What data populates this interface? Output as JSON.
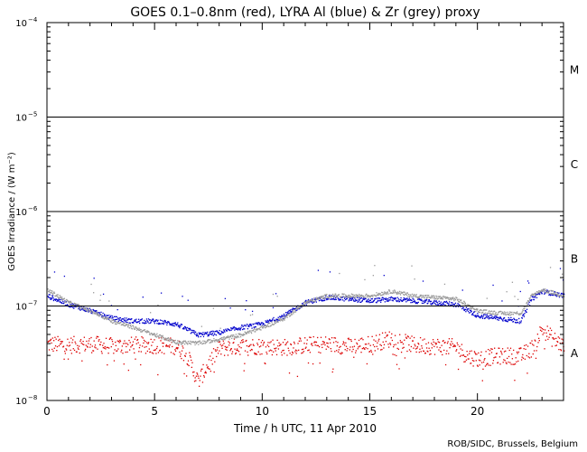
{
  "chart_data": {
    "type": "scatter",
    "title": "GOES 0.1–0.8nm (red), LYRA Al (blue) & Zr (grey) proxy",
    "xlabel": "Time / h UTC, 11 Apr 2010",
    "ylabel": "GOES Irradiance / (W m⁻²)",
    "xlim": [
      0,
      24
    ],
    "ylim_log10": [
      -8,
      -4
    ],
    "x_ticks": [
      0,
      5,
      10,
      15,
      20
    ],
    "y_ticks": [
      {
        "exp": -8,
        "base": "10",
        "sup": "−8"
      },
      {
        "exp": -7,
        "base": "10",
        "sup": "−7"
      },
      {
        "exp": -6,
        "base": "10",
        "sup": "−6"
      },
      {
        "exp": -5,
        "base": "10",
        "sup": "−5"
      },
      {
        "exp": -4,
        "base": "10",
        "sup": "−4"
      }
    ],
    "class_thresholds": [
      -7,
      -6,
      -5
    ],
    "class_labels": [
      {
        "label": "A",
        "log10": -7.5
      },
      {
        "label": "B",
        "log10": -6.5
      },
      {
        "label": "C",
        "log10": -5.5
      },
      {
        "label": "M",
        "log10": -4.5
      }
    ],
    "series": [
      {
        "name": "GOES 0.1-0.8nm",
        "color": "#dd0000",
        "x": [
          0,
          1,
          2,
          3,
          4,
          5,
          6,
          6.5,
          7,
          7.5,
          8,
          9,
          10,
          11,
          12,
          13,
          14,
          15,
          16,
          17,
          18,
          19,
          19.5,
          20,
          21,
          22,
          22.5,
          23,
          23.5,
          24
        ],
        "y": [
          4e-08,
          3.9e-08,
          4e-08,
          3.8e-08,
          3.9e-08,
          3.9e-08,
          3.8e-08,
          3e-08,
          1.6e-08,
          2.5e-08,
          3.6e-08,
          3.8e-08,
          3.8e-08,
          3.7e-08,
          3.9e-08,
          4e-08,
          3.8e-08,
          4e-08,
          4.6e-08,
          3.9e-08,
          3.8e-08,
          3.7e-08,
          3e-08,
          2.8e-08,
          3e-08,
          3e-08,
          3.6e-08,
          5.8e-08,
          4.5e-08,
          3.8e-08
        ]
      },
      {
        "name": "LYRA Al proxy",
        "color": "#0000cc",
        "x": [
          0,
          1,
          2,
          3,
          4,
          5,
          6,
          7,
          8,
          9,
          10,
          11,
          12,
          13,
          14,
          15,
          16,
          17,
          18,
          19,
          20,
          21,
          22,
          22.5,
          23,
          24
        ],
        "y": [
          1.3e-07,
          1.05e-07,
          9e-08,
          7.5e-08,
          7e-08,
          7e-08,
          6.5e-08,
          5e-08,
          5.3e-08,
          6e-08,
          6.5e-08,
          8e-08,
          1.1e-07,
          1.25e-07,
          1.2e-07,
          1.15e-07,
          1.2e-07,
          1.15e-07,
          1.1e-07,
          1.05e-07,
          8e-08,
          7.5e-08,
          7e-08,
          1.2e-07,
          1.45e-07,
          1.3e-07
        ]
      },
      {
        "name": "LYRA Zr proxy",
        "color": "#999999",
        "x": [
          0,
          1,
          2,
          3,
          4,
          5,
          6,
          7,
          8,
          9,
          10,
          11,
          12,
          13,
          14,
          15,
          16,
          17,
          18,
          19,
          20,
          21,
          22,
          22.5,
          23,
          24
        ],
        "y": [
          1.5e-07,
          1.1e-07,
          9e-08,
          7e-08,
          6e-08,
          5e-08,
          4.2e-08,
          4.1e-08,
          4.5e-08,
          5e-08,
          6e-08,
          7.5e-08,
          1.1e-07,
          1.3e-07,
          1.3e-07,
          1.3e-07,
          1.45e-07,
          1.3e-07,
          1.25e-07,
          1.2e-07,
          9e-08,
          8.5e-08,
          8.5e-08,
          1.3e-07,
          1.5e-07,
          1.3e-07
        ]
      }
    ],
    "credit": "ROB/SIDC, Brussels, Belgium"
  }
}
